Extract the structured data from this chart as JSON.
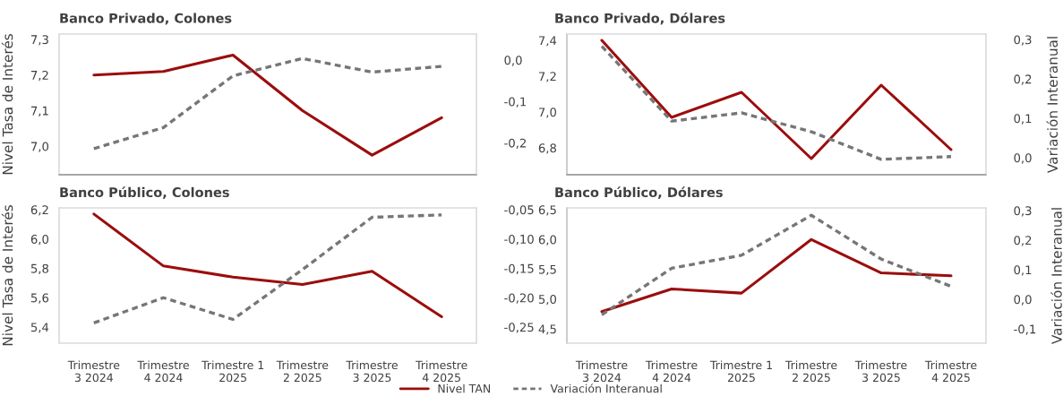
{
  "chart_data": [
    {
      "type": "line",
      "title": "Banco Privado, Colones",
      "ylabel": "Nivel Tasa de Interés",
      "legend": "bottom",
      "categories": [
        null,
        null,
        null,
        null,
        null,
        null
      ],
      "ylim": [
        6.92,
        7.315
      ],
      "yticks": [
        {
          "value": 7.0,
          "label": "7,0"
        },
        {
          "value": 7.1,
          "label": "7,1"
        },
        {
          "value": 7.2,
          "label": "7,2"
        },
        {
          "value": 7.3,
          "label": "7,3"
        }
      ],
      "y2lim": [
        -0.277,
        0.063
      ],
      "y2ticks": [
        {
          "value": -0.2,
          "label": "-0,2"
        },
        {
          "value": -0.1,
          "label": "-0,1"
        },
        {
          "value": 0.0,
          "label": "0,0"
        }
      ],
      "series": [
        {
          "name": "Nivel TAN",
          "color": "#9b0d0d",
          "line_style": "solid",
          "values": [
            7.2,
            7.21,
            7.256,
            7.1,
            6.975,
            7.08
          ]
        },
        {
          "name": "Variación Interanual",
          "color": "#767676",
          "line_style": "dashed",
          "axis": "y2",
          "values": [
            -0.214,
            -0.163,
            -0.038,
            0.004,
            -0.029,
            -0.015
          ]
        }
      ]
    },
    {
      "type": "line",
      "title": "Banco Privado, Dólares",
      "y2label": "Variación Interanual",
      "legend": "bottom",
      "categories": [
        null,
        null,
        null,
        null,
        null,
        null
      ],
      "ylim": [
        6.65,
        7.435
      ],
      "yticks": [
        {
          "value": 6.8,
          "label": "6,8"
        },
        {
          "value": 7.0,
          "label": "7,0"
        },
        {
          "value": 7.2,
          "label": "7,2"
        },
        {
          "value": 7.4,
          "label": "7,4"
        }
      ],
      "y2lim": [
        -0.043,
        0.314
      ],
      "y2ticks": [
        {
          "value": 0.0,
          "label": "0,0"
        },
        {
          "value": 0.1,
          "label": "0,1"
        },
        {
          "value": 0.2,
          "label": "0,2"
        },
        {
          "value": 0.3,
          "label": "0,3"
        }
      ],
      "series": [
        {
          "color": "#9b0d0d",
          "line_style": "solid",
          "values": [
            7.4,
            6.97,
            7.11,
            6.74,
            7.15,
            6.79
          ]
        },
        {
          "color": "#767676",
          "line_style": "dashed",
          "axis": "y2",
          "values": [
            0.283,
            0.093,
            0.114,
            0.066,
            -0.004,
            0.003
          ]
        }
      ]
    },
    {
      "type": "line",
      "title": "Banco Público, Colones",
      "ylabel": "Nivel Tasa de Interés",
      "legend": "bottom",
      "categories": [
        "Trimestre\n3 2024",
        "Trimestre\n4 2024",
        "Trimestre 1\n2025",
        "Trimestre\n2 2025",
        "Trimestre\n3 2025",
        "Trimestre\n4 2025"
      ],
      "ylim": [
        5.29,
        6.212
      ],
      "yticks": [
        {
          "value": 5.4,
          "label": "5,4"
        },
        {
          "value": 5.6,
          "label": "5,6"
        },
        {
          "value": 5.8,
          "label": "5,8"
        },
        {
          "value": 6.0,
          "label": "6,0"
        },
        {
          "value": 6.2,
          "label": "6,2"
        }
      ],
      "y2lim": [
        -0.2775,
        -0.047
      ],
      "y2ticks": [
        {
          "value": -0.25,
          "label": "-0,25"
        },
        {
          "value": -0.2,
          "label": "-0,20"
        },
        {
          "value": -0.15,
          "label": "-0,15"
        },
        {
          "value": -0.1,
          "label": "-0,10"
        },
        {
          "value": -0.05,
          "label": "-0,05"
        }
      ],
      "series": [
        {
          "color": "#9b0d0d",
          "line_style": "solid",
          "values": [
            6.17,
            5.816,
            5.74,
            5.69,
            5.78,
            5.47
          ]
        },
        {
          "color": "#767676",
          "line_style": "dashed",
          "axis": "y2",
          "values": [
            -0.243,
            -0.2,
            -0.237,
            -0.152,
            -0.063,
            -0.059
          ]
        }
      ]
    },
    {
      "type": "line",
      "title": "Banco Público, Dólares",
      "y2label": "Variación Interanual",
      "legend": "bottom",
      "categories": [
        "Trimestre\n3 2024",
        "Trimestre\n4 2024",
        "Trimestre 1\n2025",
        "Trimestre\n2 2025",
        "Trimestre\n3 2025",
        "Trimestre\n4 2025"
      ],
      "ylim": [
        4.26,
        6.53
      ],
      "yticks": [
        {
          "value": 4.5,
          "label": "4,5"
        },
        {
          "value": 5.0,
          "label": "5,0"
        },
        {
          "value": 5.5,
          "label": "5,5"
        },
        {
          "value": 6.0,
          "label": "6,0"
        },
        {
          "value": 6.5,
          "label": "6,5"
        }
      ],
      "y2lim": [
        -0.148,
        0.309
      ],
      "y2ticks": [
        {
          "value": -0.1,
          "label": "-0,1"
        },
        {
          "value": 0.0,
          "label": "0,0"
        },
        {
          "value": 0.1,
          "label": "0,1"
        },
        {
          "value": 0.2,
          "label": "0,2"
        },
        {
          "value": 0.3,
          "label": "0,3"
        }
      ],
      "series": [
        {
          "color": "#9b0d0d",
          "line_style": "solid",
          "values": [
            4.79,
            5.17,
            5.1,
            6.0,
            5.44,
            5.39
          ]
        },
        {
          "color": "#767676",
          "line_style": "dashed",
          "axis": "y2",
          "values": [
            -0.052,
            0.105,
            0.149,
            0.284,
            0.136,
            0.044
          ]
        }
      ]
    }
  ]
}
